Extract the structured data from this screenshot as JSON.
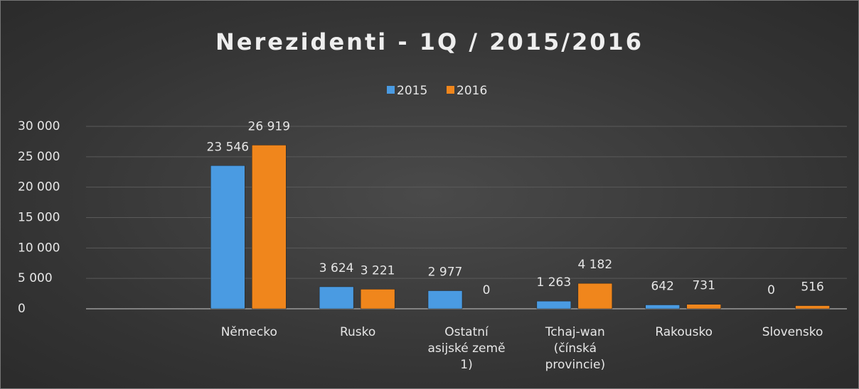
{
  "chart_data": {
    "type": "bar",
    "title": "Nerezidenti - 1Q / 2015/2016",
    "categories": [
      null,
      "Německo",
      "Rusko",
      "Ostatní asijské země 1)",
      "Tchaj-wan (čínská provincie)",
      "Rakousko",
      "Slovensko"
    ],
    "series": [
      {
        "name": "2015",
        "color": "#4a9be2",
        "values": [
          null,
          23546,
          3624,
          2977,
          1263,
          642,
          0
        ],
        "value_labels": [
          null,
          "23 546",
          "3 624",
          "2 977",
          "1 263",
          "642",
          "0"
        ]
      },
      {
        "name": "2016",
        "color": "#f0861c",
        "values": [
          null,
          26919,
          3221,
          0,
          4182,
          731,
          516
        ],
        "value_labels": [
          null,
          "26 919",
          "3 221",
          "0",
          "4 182",
          "731",
          "516"
        ]
      }
    ],
    "ylim": [
      0,
      30000
    ],
    "yticks": [
      0,
      {
        "value": 5000,
        "label": "5 000"
      },
      {
        "value": 10000,
        "label": "10 000"
      },
      {
        "value": 15000,
        "label": "15 000"
      },
      {
        "value": 20000,
        "label": "20 000"
      },
      {
        "value": 25000,
        "label": "25 000"
      },
      {
        "value": 30000,
        "label": "30 000"
      }
    ],
    "grid": true,
    "legend": "top"
  }
}
